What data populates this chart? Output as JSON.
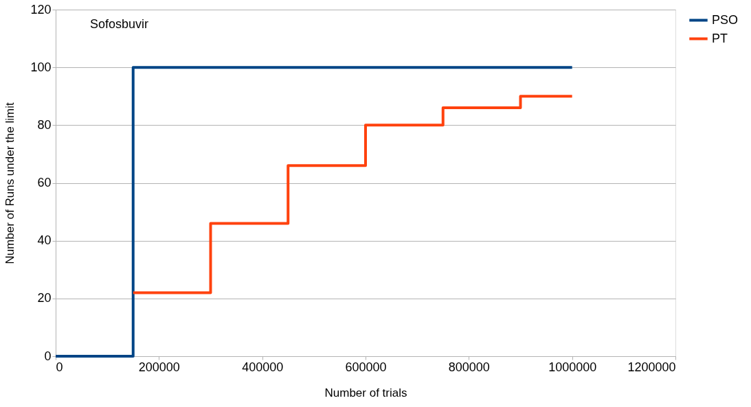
{
  "chart_data": {
    "type": "step",
    "xlabel": "Number of trials",
    "ylabel": "Number of Runs under the limit",
    "annotations": [
      "Sofosbuvir"
    ],
    "series": [
      {
        "name": "PSO",
        "color": "#004586",
        "x": [
          0,
          150000,
          1000000
        ],
        "values": [
          0,
          100,
          100
        ]
      },
      {
        "name": "PT",
        "color": "#ff420e",
        "x": [
          150000,
          300000,
          450000,
          600000,
          750000,
          900000,
          1000000
        ],
        "values": [
          22,
          46,
          66,
          80,
          86,
          90,
          90
        ]
      }
    ],
    "xlim": [
      0,
      1200000
    ],
    "xticks": [
      0,
      200000,
      400000,
      600000,
      800000,
      1000000,
      1200000
    ],
    "ylim": [
      0,
      120
    ],
    "yticks": [
      0,
      20,
      40,
      60,
      80,
      100,
      120
    ],
    "grid": "y",
    "legend": "right",
    "line_style": "solid",
    "marker": "none"
  }
}
